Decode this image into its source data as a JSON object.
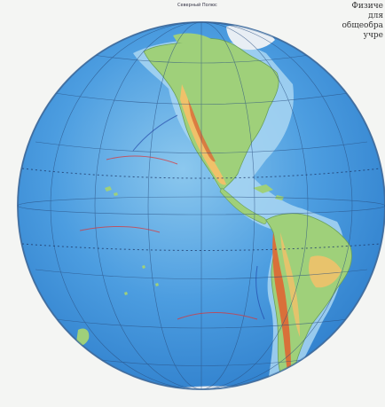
{
  "map": {
    "projection": "orthographic",
    "hemisphere": "western",
    "colors": {
      "ocean_deep": "#3d8fd6",
      "ocean_shallow": "#8cc8ee",
      "lowland": "#9fd07a",
      "upland": "#f0c16a",
      "mountain": "#d9703a",
      "ice": "#e8eef4",
      "graticule": "#2a4f80",
      "background": "#f4f5f3"
    }
  },
  "header": {
    "caption_lines": [
      "Физиче",
      "для",
      "общеобра",
      "учре"
    ]
  },
  "globe": {
    "pole_label": "Северный Полюс"
  }
}
